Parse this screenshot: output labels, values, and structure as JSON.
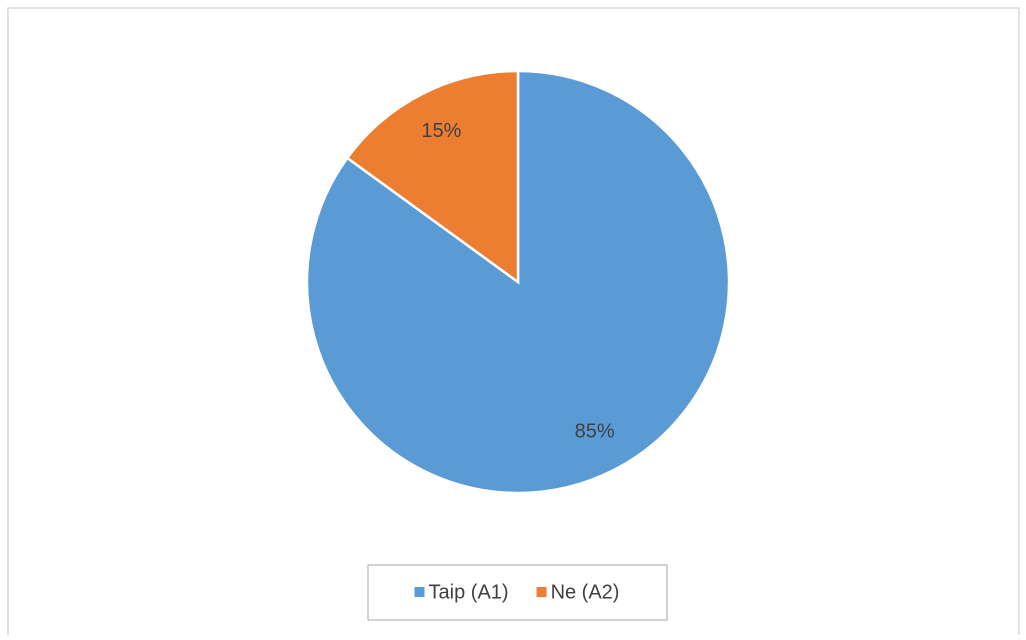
{
  "chart_data": {
    "type": "pie",
    "categories": [
      "Taip (A1)",
      "Ne (A2)"
    ],
    "values": [
      85,
      15
    ],
    "value_labels": [
      "85%",
      "15%"
    ],
    "colors": [
      "#5b9bd5",
      "#ed7d31"
    ],
    "legend": "bottom"
  }
}
